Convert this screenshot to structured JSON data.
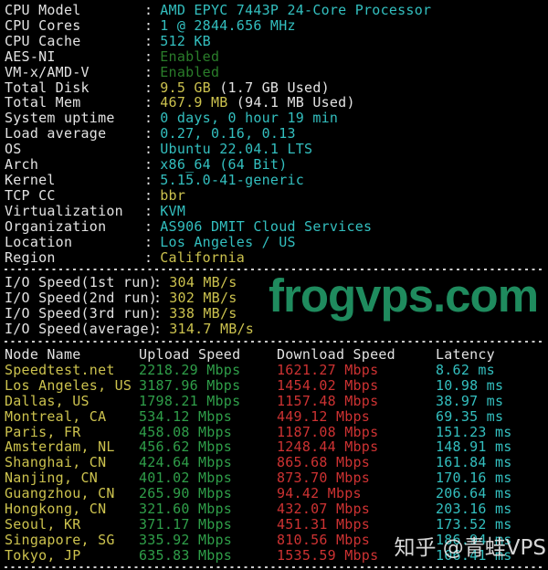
{
  "colon": ":",
  "colors": {
    "bg": "#000000",
    "white": "#e2e2e2",
    "cyan": "#33bfbf",
    "yellow": "#ccc24e",
    "green_dim": "#2a7d2a",
    "green": "#2f9e49",
    "red": "#cd3232",
    "wm_green": "#1f8b5e",
    "wm_white": "#e8e8e8",
    "sep": "#c8c8c8"
  },
  "sysinfo": [
    {
      "label": "CPU Model",
      "parts": [
        {
          "text": "AMD EPYC 7443P 24-Core Processor",
          "color": "cyan"
        }
      ]
    },
    {
      "label": "CPU Cores",
      "parts": [
        {
          "text": "1 @ 2844.656 MHz",
          "color": "cyan"
        }
      ]
    },
    {
      "label": "CPU Cache",
      "parts": [
        {
          "text": "512 KB",
          "color": "cyan"
        }
      ]
    },
    {
      "label": "AES-NI",
      "parts": [
        {
          "text": "Enabled",
          "color": "green_dim"
        }
      ]
    },
    {
      "label": "VM-x/AMD-V",
      "parts": [
        {
          "text": "Enabled",
          "color": "green_dim"
        }
      ]
    },
    {
      "label": "Total Disk",
      "parts": [
        {
          "text": "9.5 GB",
          "color": "yellow"
        },
        {
          "text": " (1.7 GB Used)",
          "color": "white"
        }
      ]
    },
    {
      "label": "Total Mem",
      "parts": [
        {
          "text": "467.9 MB",
          "color": "yellow"
        },
        {
          "text": " (94.1 MB Used)",
          "color": "white"
        }
      ]
    },
    {
      "label": "System uptime",
      "parts": [
        {
          "text": "0 days, 0 hour 19 min",
          "color": "cyan"
        }
      ]
    },
    {
      "label": "Load average",
      "parts": [
        {
          "text": "0.27, 0.16, 0.13",
          "color": "cyan"
        }
      ]
    },
    {
      "label": "OS",
      "parts": [
        {
          "text": "Ubuntu 22.04.1 LTS",
          "color": "cyan"
        }
      ]
    },
    {
      "label": "Arch",
      "parts": [
        {
          "text": "x86_64 (64 Bit)",
          "color": "cyan"
        }
      ]
    },
    {
      "label": "Kernel",
      "parts": [
        {
          "text": "5.15.0-41-generic",
          "color": "cyan"
        }
      ]
    },
    {
      "label": "TCP CC",
      "parts": [
        {
          "text": "bbr",
          "color": "yellow"
        }
      ]
    },
    {
      "label": "Virtualization",
      "parts": [
        {
          "text": "KVM",
          "color": "cyan"
        }
      ]
    },
    {
      "label": "Organization",
      "parts": [
        {
          "text": "AS906 DMIT Cloud Services",
          "color": "cyan"
        }
      ]
    },
    {
      "label": "Location",
      "parts": [
        {
          "text": "Los Angeles / US",
          "color": "cyan"
        }
      ]
    },
    {
      "label": "Region",
      "parts": [
        {
          "text": "California",
          "color": "yellow"
        }
      ]
    }
  ],
  "io": [
    {
      "label": "I/O Speed(1st run)",
      "value": "304 MB/s"
    },
    {
      "label": "I/O Speed(2nd run)",
      "value": "302 MB/s"
    },
    {
      "label": "I/O Speed(3rd run)",
      "value": "338 MB/s"
    },
    {
      "label": "I/O Speed(average)",
      "value": "314.7 MB/s"
    }
  ],
  "speedtest": {
    "headers": {
      "node": "Node Name",
      "upload": "Upload Speed",
      "download": "Download Speed",
      "latency": "Latency"
    },
    "rows": [
      {
        "node": "Speedtest.net",
        "upload": "2218.29 Mbps",
        "download": "1621.27 Mbps",
        "latency": "8.62 ms"
      },
      {
        "node": "Los Angeles, US",
        "upload": "3187.96 Mbps",
        "download": "1454.02 Mbps",
        "latency": "10.98 ms"
      },
      {
        "node": "Dallas, US",
        "upload": "1798.21 Mbps",
        "download": "1157.48 Mbps",
        "latency": "38.97 ms"
      },
      {
        "node": "Montreal, CA",
        "upload": "534.12 Mbps",
        "download": "449.12 Mbps",
        "latency": "69.35 ms"
      },
      {
        "node": "Paris, FR",
        "upload": "458.08 Mbps",
        "download": "1187.08 Mbps",
        "latency": "151.23 ms"
      },
      {
        "node": "Amsterdam, NL",
        "upload": "456.62 Mbps",
        "download": "1248.44 Mbps",
        "latency": "148.91 ms"
      },
      {
        "node": "Shanghai, CN",
        "upload": "424.64 Mbps",
        "download": "865.68 Mbps",
        "latency": "161.84 ms"
      },
      {
        "node": "Nanjing, CN",
        "upload": "401.02 Mbps",
        "download": "873.70 Mbps",
        "latency": "170.16 ms"
      },
      {
        "node": "Guangzhou, CN",
        "upload": "265.90 Mbps",
        "download": "94.42 Mbps",
        "latency": "206.64 ms"
      },
      {
        "node": "Hongkong, CN",
        "upload": "321.60 Mbps",
        "download": "432.07 Mbps",
        "latency": "203.16 ms"
      },
      {
        "node": "Seoul, KR",
        "upload": "371.17 Mbps",
        "download": "451.31 Mbps",
        "latency": "173.52 ms"
      },
      {
        "node": "Singapore, SG",
        "upload": "335.92 Mbps",
        "download": "810.56 Mbps",
        "latency": "186.94 ms"
      },
      {
        "node": "Tokyo, JP",
        "upload": "635.83 Mbps",
        "download": "1535.59 Mbps",
        "latency": "106.41 ms"
      }
    ]
  },
  "watermarks": {
    "center": "frogvps.com",
    "corner": "知乎 @青蛙VPS"
  }
}
